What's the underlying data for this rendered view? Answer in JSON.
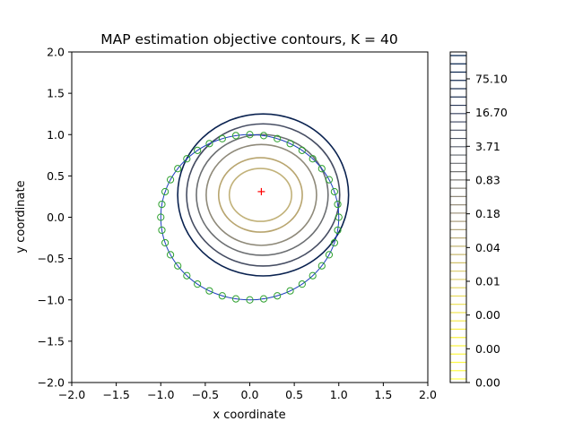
{
  "chart_data": {
    "type": "contour",
    "title": "MAP estimation objective contours, K = 40",
    "xlabel": "x coordinate",
    "ylabel": "y coordinate",
    "xlim": [
      -2.0,
      2.0
    ],
    "ylim": [
      -2.0,
      2.0
    ],
    "xticks": [
      "−2.0",
      "−1.5",
      "−1.0",
      "−0.5",
      "0.0",
      "0.5",
      "1.0",
      "1.5",
      "2.0"
    ],
    "yticks": [
      "−2.0",
      "−1.5",
      "−1.0",
      "−0.5",
      "0.0",
      "0.5",
      "1.0",
      "1.5",
      "2.0"
    ],
    "grid": false,
    "true_circle": {
      "center": [
        0.0,
        0.0
      ],
      "radius": 1.0,
      "color": "#1f3fbf"
    },
    "observations": {
      "count": 40,
      "marker": "open-circle",
      "color": "#2ca02c",
      "radius": 1.0
    },
    "estimate": {
      "x": 0.13,
      "y": 0.31,
      "marker": "+",
      "color": "#ff0000"
    },
    "contours": [
      {
        "center": [
          0.12,
          0.27
        ],
        "rx": 0.35,
        "ry": 0.32,
        "color": "#c2b27a"
      },
      {
        "center": [
          0.12,
          0.27
        ],
        "rx": 0.47,
        "ry": 0.45,
        "color": "#b8a56f"
      },
      {
        "center": [
          0.13,
          0.27
        ],
        "rx": 0.62,
        "ry": 0.61,
        "color": "#8f8a7a"
      },
      {
        "center": [
          0.14,
          0.27
        ],
        "rx": 0.74,
        "ry": 0.73,
        "color": "#6c6f72"
      },
      {
        "center": [
          0.15,
          0.27
        ],
        "rx": 0.86,
        "ry": 0.86,
        "color": "#474e63"
      },
      {
        "center": [
          0.15,
          0.27
        ],
        "rx": 0.96,
        "ry": 0.98,
        "color": "#0a2250"
      }
    ],
    "colorbar": {
      "tick_labels": [
        "75.10",
        "16.70",
        "3.71",
        "0.83",
        "0.18",
        "0.04",
        "0.01",
        "0.00",
        "0.00",
        "0.00"
      ],
      "levels": 40,
      "colors": [
        "#ffff4d",
        "#f7ec3f",
        "#d9c96a",
        "#a99d84",
        "#6c6f72",
        "#2e3a5a",
        "#00204d"
      ]
    }
  }
}
